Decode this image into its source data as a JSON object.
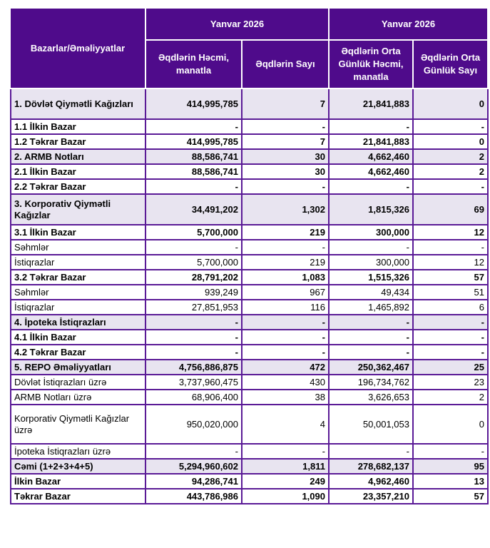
{
  "header": {
    "row_label": "Bazarlar/Əməliyyatlar",
    "period_1": "Yanvar 2026",
    "period_2": "Yanvar 2026",
    "col_volume": "Əqdlərin Həcmi, manatla",
    "col_count": "Əqdlərin Sayı",
    "col_avg_volume": "Əqdlərin Orta Günlük Həcmi, manatla",
    "col_avg_count": "Əqdlərin Orta Günlük Sayı"
  },
  "colors": {
    "header_bg": "#4f0b8b",
    "border": "#5a1a96",
    "shade": "#e8e4f0"
  },
  "rows": [
    {
      "label": "1. Dövlət Qiymətli Kağızları",
      "values": [
        "414,995,785",
        "7",
        "21,841,883",
        "0"
      ],
      "style": "bold shade two"
    },
    {
      "label": "1.1 İlkin Bazar",
      "values": [
        "-",
        "-",
        "-",
        "-"
      ],
      "style": "bold"
    },
    {
      "label": "1.2 Təkrar Bazar",
      "values": [
        "414,995,785",
        "7",
        "21,841,883",
        "0"
      ],
      "style": "bold"
    },
    {
      "label": "2. ARMB Notları",
      "values": [
        "88,586,741",
        "30",
        "4,662,460",
        "2"
      ],
      "style": "bold shade"
    },
    {
      "label": "2.1 İlkin Bazar",
      "values": [
        "88,586,741",
        "30",
        "4,662,460",
        "2"
      ],
      "style": "bold"
    },
    {
      "label": "2.2 Təkrar Bazar",
      "values": [
        "-",
        "-",
        "-",
        "-"
      ],
      "style": "bold"
    },
    {
      "label": "3. Korporativ Qiymətli Kağızlar",
      "values": [
        "34,491,202",
        "1,302",
        "1,815,326",
        "69"
      ],
      "style": "bold shade two"
    },
    {
      "label": "3.1 İlkin Bazar",
      "values": [
        "5,700,000",
        "219",
        "300,000",
        "12"
      ],
      "style": "bold"
    },
    {
      "label": "Səhmlər",
      "values": [
        "-",
        "-",
        "-",
        "-"
      ],
      "style": ""
    },
    {
      "label": "İstiqrazlar",
      "values": [
        "5,700,000",
        "219",
        "300,000",
        "12"
      ],
      "style": ""
    },
    {
      "label": "3.2 Təkrar Bazar",
      "values": [
        "28,791,202",
        "1,083",
        "1,515,326",
        "57"
      ],
      "style": "bold"
    },
    {
      "label": "Səhmlər",
      "values": [
        "939,249",
        "967",
        "49,434",
        "51"
      ],
      "style": ""
    },
    {
      "label": "İstiqrazlar",
      "values": [
        "27,851,953",
        "116",
        "1,465,892",
        "6"
      ],
      "style": ""
    },
    {
      "label": "4. İpoteka İstiqrazları",
      "values": [
        "-",
        "-",
        "-",
        "-"
      ],
      "style": "bold shade"
    },
    {
      "label": "4.1 İlkin Bazar",
      "values": [
        "-",
        "-",
        "-",
        "-"
      ],
      "style": "bold"
    },
    {
      "label": "4.2 Təkrar Bazar",
      "values": [
        "-",
        "-",
        "-",
        "-"
      ],
      "style": "bold"
    },
    {
      "label": "5. REPO Əməliyyatları",
      "values": [
        "4,756,886,875",
        "472",
        "250,362,467",
        "25"
      ],
      "style": "bold shade"
    },
    {
      "label": "Dövlət İstiqrazları üzrə",
      "values": [
        "3,737,960,475",
        "430",
        "196,734,762",
        "23"
      ],
      "style": ""
    },
    {
      "label": "ARMB Notları üzrə",
      "values": [
        "68,906,400",
        "38",
        "3,626,653",
        "2"
      ],
      "style": ""
    },
    {
      "label": "Korporativ Qiymətli Kağızlar üzrə",
      "values": [
        "950,020,000",
        "4",
        "50,001,053",
        "0"
      ],
      "style": "tall"
    },
    {
      "label": "İpoteka İstiqrazları üzrə",
      "values": [
        "-",
        "-",
        "-",
        "-"
      ],
      "style": ""
    },
    {
      "label": "Cəmi (1+2+3+4+5)",
      "values": [
        "5,294,960,602",
        "1,811",
        "278,682,137",
        "95"
      ],
      "style": "bold shade"
    },
    {
      "label": "İlkin Bazar",
      "values": [
        "94,286,741",
        "249",
        "4,962,460",
        "13"
      ],
      "style": "bold"
    },
    {
      "label": "Təkrar Bazar",
      "values": [
        "443,786,986",
        "1,090",
        "23,357,210",
        "57"
      ],
      "style": "bold"
    }
  ]
}
